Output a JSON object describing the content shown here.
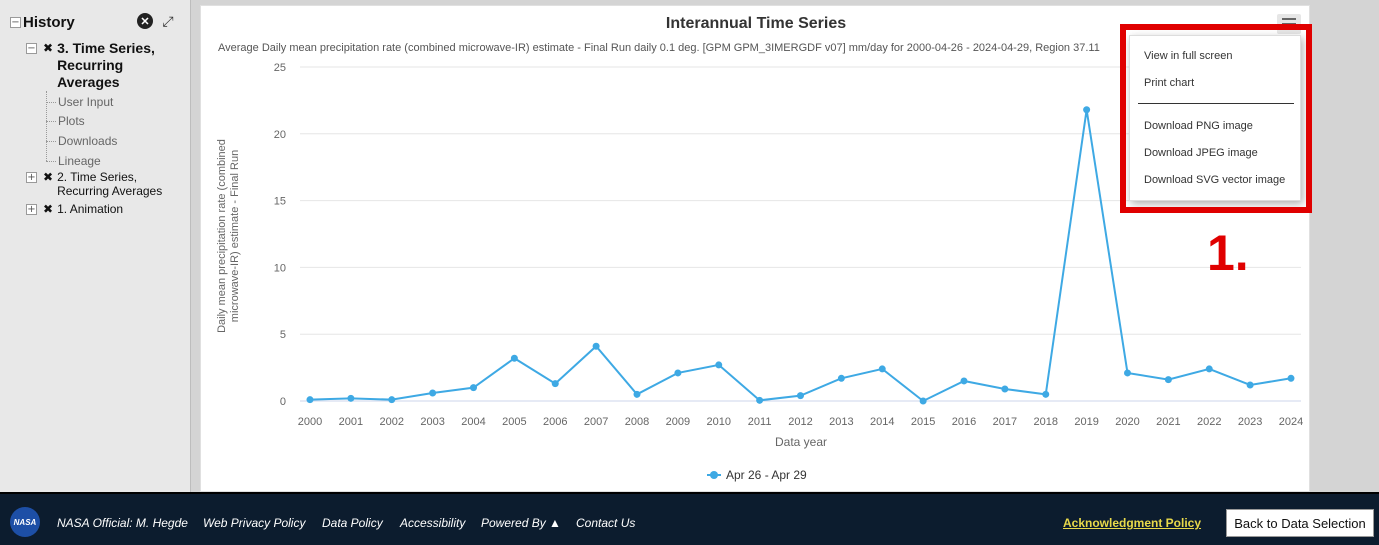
{
  "sidebar": {
    "title": "History",
    "nodes": {
      "n3": "3. Time Series, Recurring Averages",
      "n2": "2. Time Series, Recurring Averages",
      "n1": "1. Animation"
    },
    "leaves": [
      "User Input",
      "Plots",
      "Downloads",
      "Lineage"
    ]
  },
  "chart_data": {
    "type": "line",
    "title": "Interannual Time Series",
    "subtitle": "Average Daily mean precipitation rate (combined microwave-IR) estimate - Final Run daily 0.1 deg. [GPM GPM_3IMERGDF v07] mm/day for 2000-04-26 - 2024-04-29, Region 37.11",
    "xlabel": "Data year",
    "ylabel_line1": "Daily mean precipitation rate (combined",
    "ylabel_line2": "microwave-IR) estimate - Final Run",
    "ylim": [
      0,
      25
    ],
    "yticks": [
      0,
      5,
      10,
      15,
      20,
      25
    ],
    "categories": [
      "2000",
      "2001",
      "2002",
      "2003",
      "2004",
      "2005",
      "2006",
      "2007",
      "2008",
      "2009",
      "2010",
      "2011",
      "2012",
      "2013",
      "2014",
      "2015",
      "2016",
      "2017",
      "2018",
      "2019",
      "2020",
      "2021",
      "2022",
      "2023",
      "2024"
    ],
    "series": [
      {
        "name": "Apr 26 - Apr 29",
        "color": "#3ea9e4",
        "values": [
          0.1,
          0.2,
          0.1,
          0.6,
          1.0,
          3.2,
          1.3,
          4.1,
          0.5,
          2.1,
          2.7,
          0.05,
          0.4,
          1.7,
          2.4,
          0.0,
          1.5,
          0.9,
          0.5,
          21.8,
          2.1,
          1.6,
          2.4,
          1.2,
          1.7
        ]
      }
    ],
    "legend_position": "bottom-center",
    "grid": true
  },
  "menu": {
    "items": [
      "View in full screen",
      "Print chart",
      "Download PNG image",
      "Download JPEG image",
      "Download SVG vector image"
    ]
  },
  "annotation": {
    "marker": "1."
  },
  "footer": {
    "logo_text": "NASA",
    "official": "NASA Official: M. Hegde",
    "privacy": "Web Privacy Policy",
    "data_policy": "Data Policy",
    "accessibility": "Accessibility",
    "powered": "Powered By ▲",
    "contact": "Contact Us",
    "ack": "Acknowledgment Policy",
    "back": "Back to Data Selection"
  },
  "colors": {
    "highlight": "#e00000",
    "series": "#3ea9e4",
    "footer_bg": "#0c1c2e",
    "ack": "#e8d94a"
  }
}
